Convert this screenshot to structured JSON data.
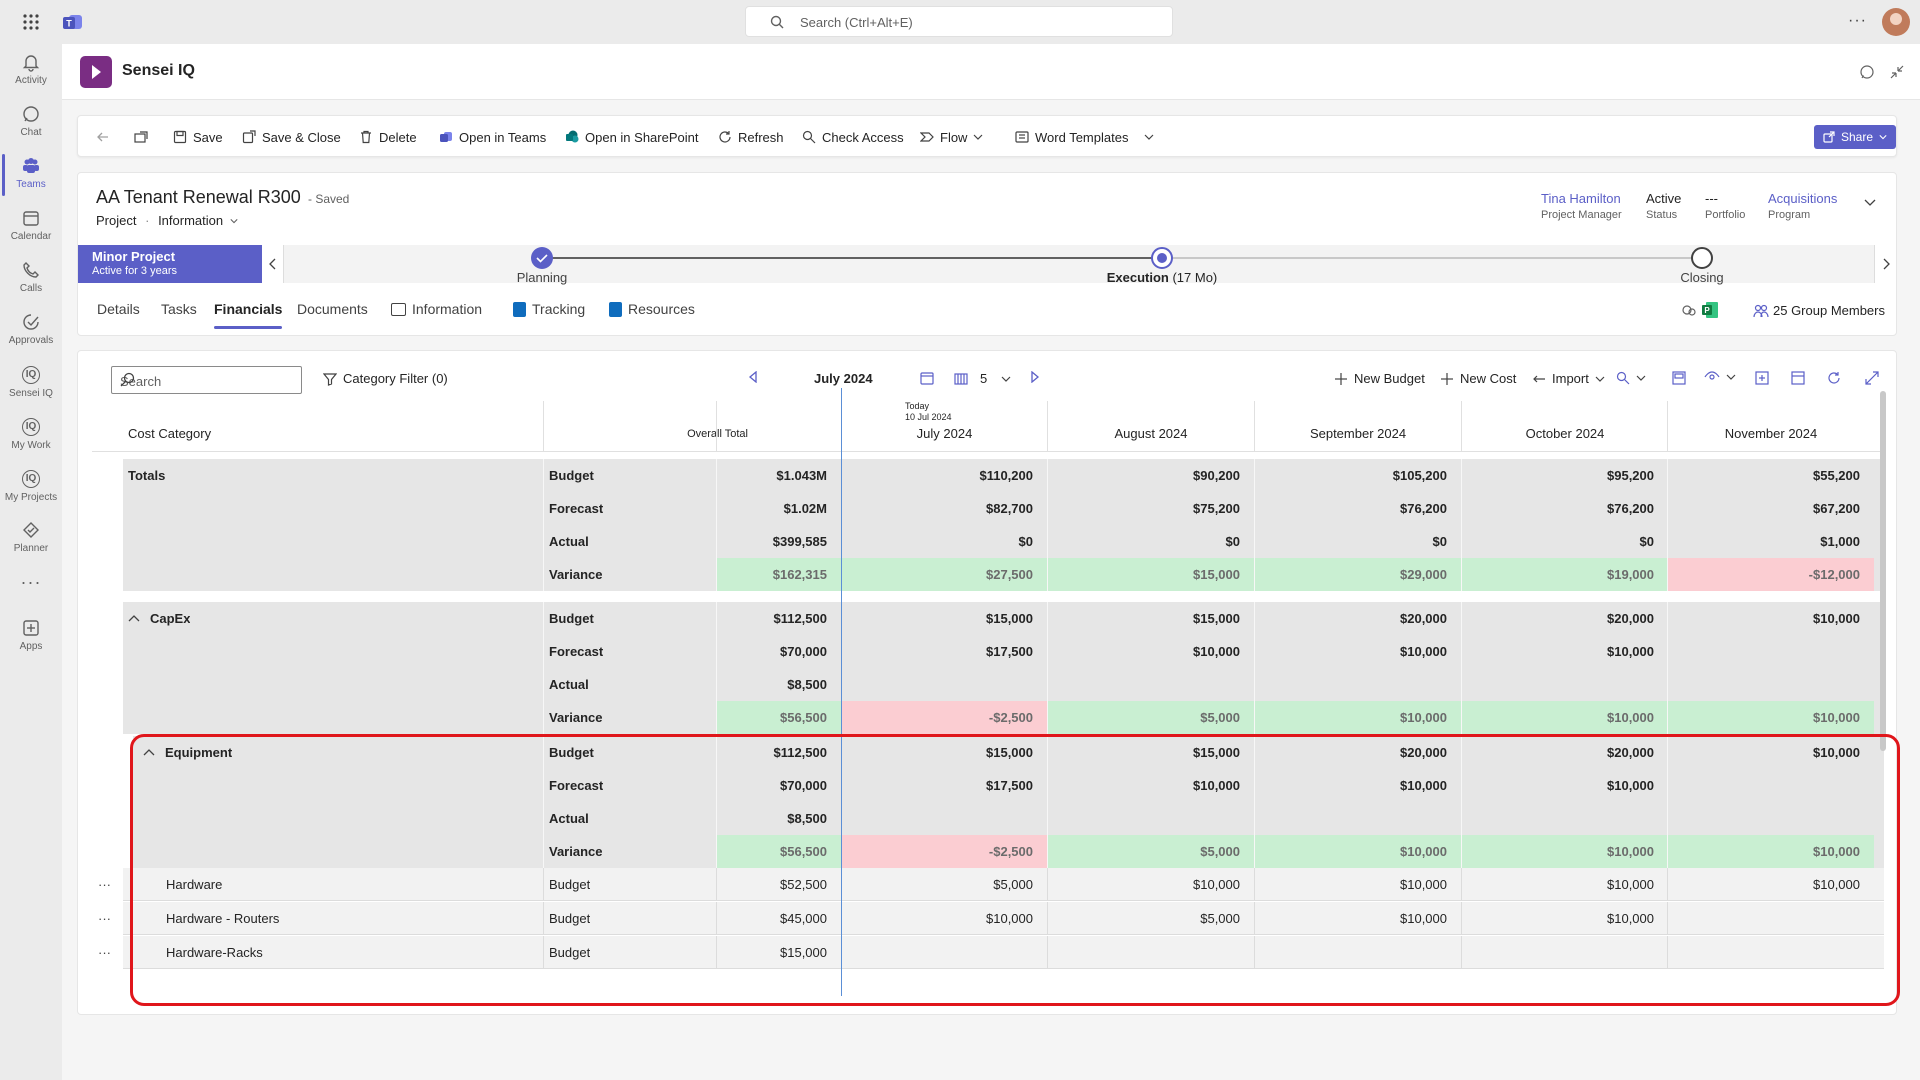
{
  "topbar": {
    "search_placeholder": "Search (Ctrl+Alt+E)"
  },
  "rail": {
    "items": [
      {
        "label": "Activity",
        "icon": "bell-icon"
      },
      {
        "label": "Chat",
        "icon": "chat-icon"
      },
      {
        "label": "Teams",
        "icon": "teams-icon",
        "active": true
      },
      {
        "label": "Calendar",
        "icon": "calendar-icon"
      },
      {
        "label": "Calls",
        "icon": "phone-icon"
      },
      {
        "label": "Approvals",
        "icon": "approvals-icon"
      },
      {
        "label": "Sensei IQ",
        "icon": "iq-icon"
      },
      {
        "label": "My Work",
        "icon": "iq-icon"
      },
      {
        "label": "My Projects",
        "icon": "iq-icon"
      },
      {
        "label": "Planner",
        "icon": "planner-icon"
      },
      {
        "label": "Apps",
        "icon": "apps-icon"
      }
    ]
  },
  "app": {
    "title": "Sensei IQ"
  },
  "toolbar": {
    "save": "Save",
    "save_close": "Save & Close",
    "delete": "Delete",
    "open_teams": "Open in Teams",
    "open_sharepoint": "Open in SharePoint",
    "refresh": "Refresh",
    "check_access": "Check Access",
    "flow": "Flow",
    "word_templates": "Word Templates",
    "share": "Share"
  },
  "record": {
    "title": "AA Tenant Renewal R300",
    "saved": "- Saved",
    "entity": "Project",
    "separator": "·",
    "form": "Information",
    "fields": {
      "manager_value": "Tina Hamilton",
      "manager_label": "Project Manager",
      "status_value": "Active",
      "status_label": "Status",
      "portfolio_value": "---",
      "portfolio_label": "Portfolio",
      "program_value": "Acquisitions",
      "program_label": "Program"
    },
    "stage_badge_title": "Minor Project",
    "stage_badge_sub": "Active for 3 years",
    "stages": {
      "planning": "Planning",
      "execution": "Execution",
      "execution_duration": "(17 Mo)",
      "closing": "Closing"
    },
    "tabs": {
      "details": "Details",
      "tasks": "Tasks",
      "financials": "Financials",
      "documents": "Documents",
      "information": "Information",
      "tracking": "Tracking",
      "resources": "Resources"
    },
    "group_members": "25 Group Members"
  },
  "grid": {
    "search_placeholder": "Search",
    "category_filter": "Category Filter (0)",
    "period": "July 2024",
    "period_count": "5",
    "new_budget": "New Budget",
    "new_cost": "New Cost",
    "import": "Import",
    "today_label": "Today",
    "today_date": "10 Jul 2024",
    "headers": {
      "category": "Cost Category",
      "overall": "Overall Total",
      "m1": "July 2024",
      "m2": "August 2024",
      "m3": "September 2024",
      "m4": "October 2024",
      "m5": "November 2024"
    },
    "rows": [
      {
        "cat": "Totals",
        "type": "Budget",
        "total": "$1.043M",
        "m1": "$110,200",
        "m2": "$90,200",
        "m3": "$105,200",
        "m4": "$95,200",
        "m5": "$55,200"
      },
      {
        "cat": "",
        "type": "Forecast",
        "total": "$1.02M",
        "m1": "$82,700",
        "m2": "$75,200",
        "m3": "$76,200",
        "m4": "$76,200",
        "m5": "$67,200"
      },
      {
        "cat": "",
        "type": "Actual",
        "total": "$399,585",
        "m1": "$0",
        "m2": "$0",
        "m3": "$0",
        "m4": "$0",
        "m5": "$1,000"
      },
      {
        "cat": "",
        "type": "Variance",
        "total": "$162,315",
        "m1": "$27,500",
        "m2": "$15,000",
        "m3": "$29,000",
        "m4": "$19,000",
        "m5": "-$12,000"
      },
      {
        "cat": "CapEx",
        "type": "Budget",
        "total": "$112,500",
        "m1": "$15,000",
        "m2": "$15,000",
        "m3": "$20,000",
        "m4": "$20,000",
        "m5": "$10,000"
      },
      {
        "cat": "",
        "type": "Forecast",
        "total": "$70,000",
        "m1": "$17,500",
        "m2": "$10,000",
        "m3": "$10,000",
        "m4": "$10,000",
        "m5": ""
      },
      {
        "cat": "",
        "type": "Actual",
        "total": "$8,500",
        "m1": "",
        "m2": "",
        "m3": "",
        "m4": "",
        "m5": ""
      },
      {
        "cat": "",
        "type": "Variance",
        "total": "$56,500",
        "m1": "-$2,500",
        "m2": "$5,000",
        "m3": "$10,000",
        "m4": "$10,000",
        "m5": "$10,000"
      },
      {
        "cat": "Equipment",
        "type": "Budget",
        "total": "$112,500",
        "m1": "$15,000",
        "m2": "$15,000",
        "m3": "$20,000",
        "m4": "$20,000",
        "m5": "$10,000"
      },
      {
        "cat": "",
        "type": "Forecast",
        "total": "$70,000",
        "m1": "$17,500",
        "m2": "$10,000",
        "m3": "$10,000",
        "m4": "$10,000",
        "m5": ""
      },
      {
        "cat": "",
        "type": "Actual",
        "total": "$8,500",
        "m1": "",
        "m2": "",
        "m3": "",
        "m4": "",
        "m5": ""
      },
      {
        "cat": "",
        "type": "Variance",
        "total": "$56,500",
        "m1": "-$2,500",
        "m2": "$5,000",
        "m3": "$10,000",
        "m4": "$10,000",
        "m5": "$10,000"
      },
      {
        "cat": "Hardware",
        "type": "Budget",
        "total": "$52,500",
        "m1": "$5,000",
        "m2": "$10,000",
        "m3": "$10,000",
        "m4": "$10,000",
        "m5": "$10,000"
      },
      {
        "cat": "Hardware - Routers",
        "type": "Budget",
        "total": "$45,000",
        "m1": "$10,000",
        "m2": "$5,000",
        "m3": "$10,000",
        "m4": "$10,000",
        "m5": ""
      },
      {
        "cat": "Hardware-Racks",
        "type": "Budget",
        "total": "$15,000",
        "m1": "",
        "m2": "",
        "m3": "",
        "m4": "",
        "m5": ""
      }
    ]
  },
  "colors": {
    "accent": "#5b5fc7",
    "positive_variance": "#c9efd2",
    "negative_variance": "#fbcdd2",
    "highlight_box": "#e0161b"
  }
}
